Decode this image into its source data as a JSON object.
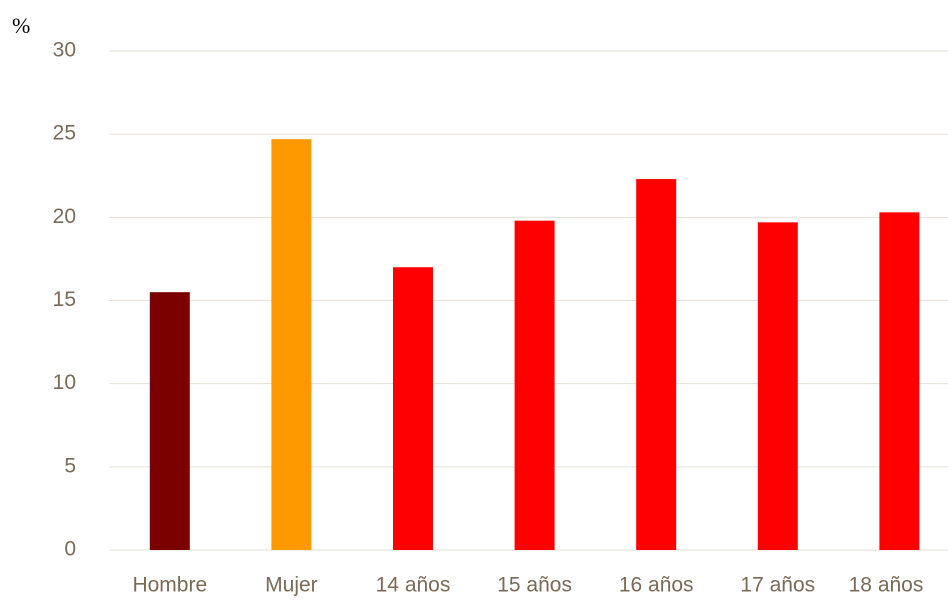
{
  "chart_data": {
    "type": "bar",
    "y_label": "%",
    "categories": [
      "Hombre",
      "Mujer",
      "14 años",
      "15 años",
      "16 años",
      "17 años",
      "18 años"
    ],
    "values": [
      15.5,
      24.7,
      17.0,
      19.8,
      22.3,
      19.7,
      20.3
    ],
    "colors": [
      "#7b0000",
      "#ff9900",
      "#ff0000",
      "#ff0000",
      "#ff0000",
      "#ff0000",
      "#ff0000"
    ],
    "ylim": [
      0,
      30
    ],
    "yticks": [
      0,
      5,
      10,
      15,
      20,
      25,
      30
    ],
    "grid": true
  }
}
